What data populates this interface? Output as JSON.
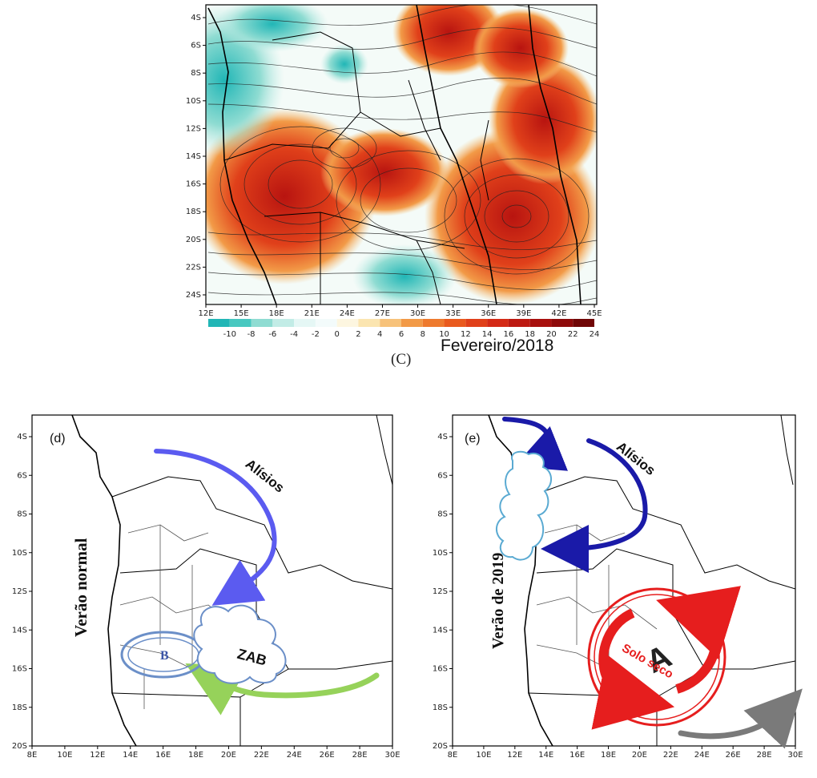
{
  "panel_c": {
    "caption_letter": "(C)",
    "caption_month": "Fevereiro/2018",
    "lat_labels": [
      "4S",
      "6S",
      "8S",
      "10S",
      "12S",
      "14S",
      "16S",
      "18S",
      "20S",
      "22S",
      "24S"
    ],
    "lon_labels": [
      "12E",
      "15E",
      "18E",
      "21E",
      "24E",
      "27E",
      "30E",
      "33E",
      "36E",
      "39E",
      "42E",
      "45E"
    ],
    "colorbar": {
      "labels": [
        "-10",
        "-8",
        "-6",
        "-4",
        "-2",
        "0",
        "2",
        "4",
        "6",
        "8",
        "10",
        "12",
        "14",
        "16",
        "18",
        "20",
        "22",
        "24"
      ],
      "colors": [
        "#21b6b6",
        "#48c8c0",
        "#8fdcd2",
        "#c2ece6",
        "#e5f7f5",
        "#f3fbfb",
        "#fdf6e0",
        "#fbe5b0",
        "#f7c27a",
        "#f29a47",
        "#ee7a2e",
        "#e95a1e",
        "#e0401a",
        "#d42a16",
        "#bd1a12",
        "#a8100e",
        "#8e0a0a",
        "#700606"
      ]
    }
  },
  "panel_d": {
    "label": "(d)",
    "title": "Verão normal",
    "arrow_label": "Alísios",
    "low_label": "B",
    "cloud_label": "ZAB",
    "lat_labels": [
      "4S",
      "6S",
      "8S",
      "10S",
      "12S",
      "14S",
      "16S",
      "18S",
      "20S"
    ],
    "lon_labels": [
      "8E",
      "10E",
      "12E",
      "14E",
      "16E",
      "18E",
      "20E",
      "22E",
      "24E",
      "26E",
      "28E",
      "30E"
    ],
    "colors": {
      "trade_arrow": "#5b5bf0",
      "southeast_arrow": "#96d25a",
      "cloud": "#6b8fc8"
    }
  },
  "panel_e": {
    "label": "(e)",
    "title": "Verão de 2019",
    "arrow_label": "Alísios",
    "high_label": "A",
    "soil_label": "Solo seco",
    "lat_labels": [
      "4S",
      "6S",
      "8S",
      "10S",
      "12S",
      "14S",
      "16S",
      "18S",
      "20S"
    ],
    "lon_labels": [
      "8E",
      "10E",
      "12E",
      "14E",
      "16E",
      "18E",
      "20E",
      "22E",
      "24E",
      "26E",
      "28E",
      "30E"
    ],
    "colors": {
      "trade_arrow": "#1a1aa8",
      "high_ring": "#e61e1e",
      "cloud": "#5aaad2",
      "grey_arrow": "#7a7a7a"
    }
  }
}
